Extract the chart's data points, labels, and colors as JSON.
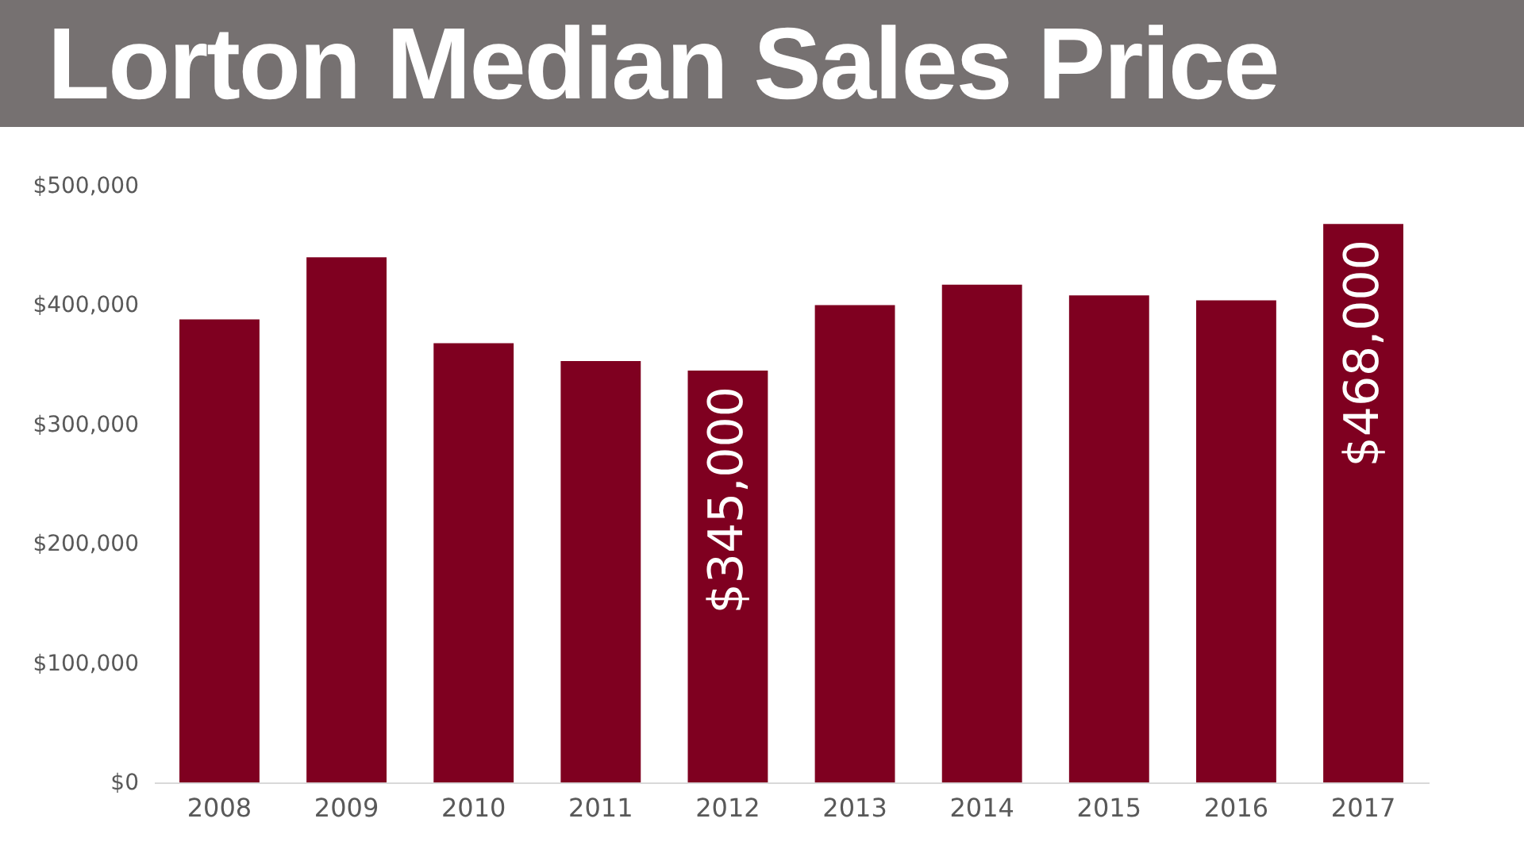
{
  "chart_data": {
    "type": "bar",
    "title": "Lorton Median Sales Price",
    "categories": [
      "2008",
      "2009",
      "2010",
      "2011",
      "2012",
      "2013",
      "2014",
      "2015",
      "2016",
      "2017"
    ],
    "values": [
      388000,
      440000,
      368000,
      353000,
      345000,
      400000,
      417000,
      408000,
      404000,
      468000
    ],
    "value_labels": [
      null,
      null,
      null,
      null,
      "$345,000",
      null,
      null,
      null,
      null,
      "$468,000"
    ],
    "color": "#7f0020",
    "ylim": [
      0,
      500000
    ],
    "yticks": [
      {
        "value": 0,
        "label": "$0"
      },
      {
        "value": 100000,
        "label": "$100,000"
      },
      {
        "value": 200000,
        "label": "$200,000"
      },
      {
        "value": 300000,
        "label": "$300,000"
      },
      {
        "value": 400000,
        "label": "$400,000"
      },
      {
        "value": 500000,
        "label": "$500,000"
      }
    ],
    "grid": false
  }
}
